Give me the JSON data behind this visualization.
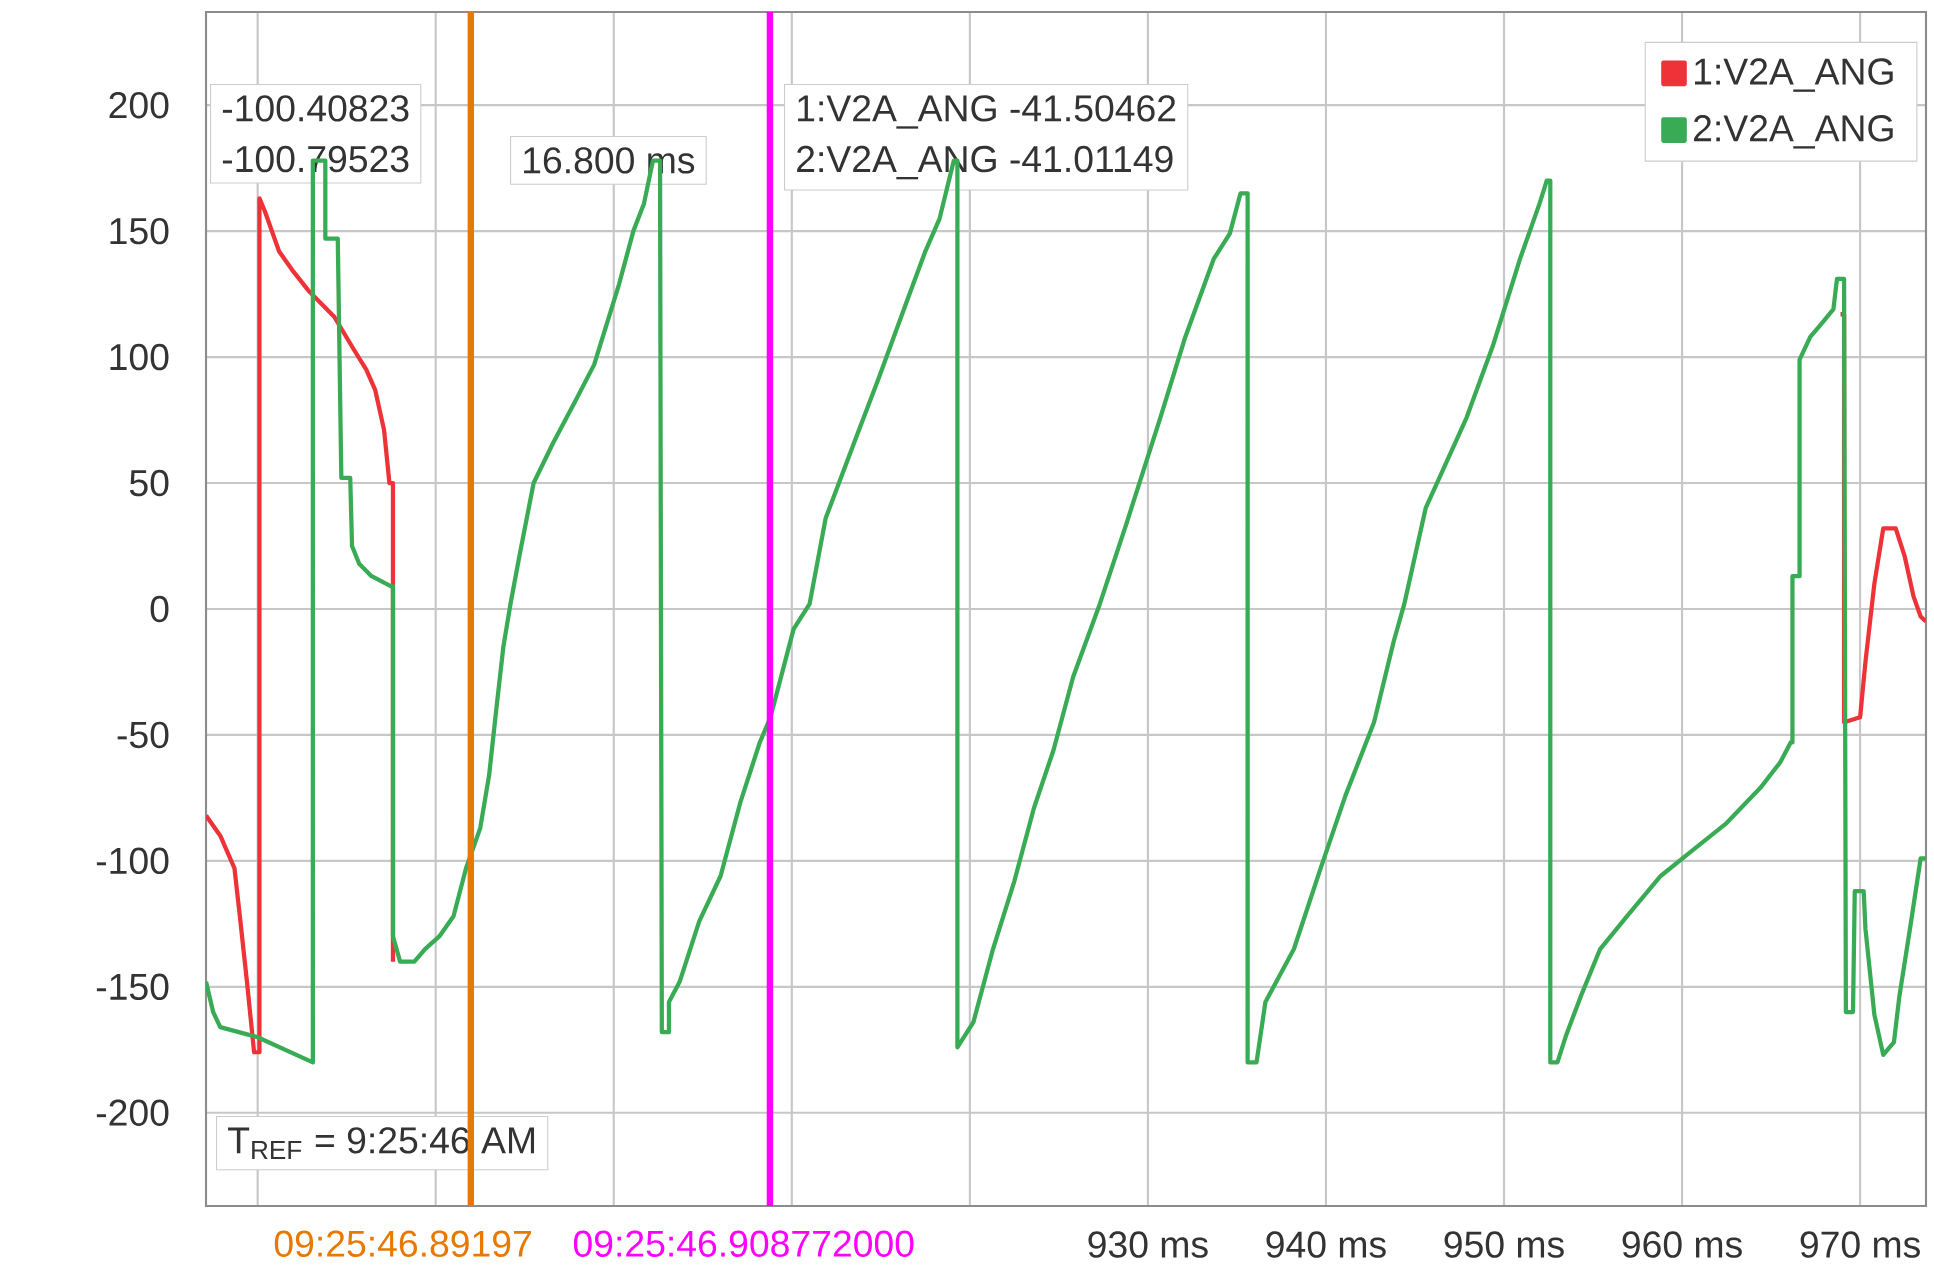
{
  "chart_data": {
    "type": "line",
    "xlim": [
      877.1,
      973.7
    ],
    "ylim": [
      -237,
      237
    ],
    "xticks": [
      {
        "value": 880,
        "label": null
      },
      {
        "value": 890,
        "label": null
      },
      {
        "value": 900,
        "label": null
      },
      {
        "value": 910,
        "label": null
      },
      {
        "value": 920,
        "label": null
      },
      {
        "value": 930,
        "label": "930 ms"
      },
      {
        "value": 940,
        "label": "940 ms"
      },
      {
        "value": 950,
        "label": "950 ms"
      },
      {
        "value": 960,
        "label": "960 ms"
      },
      {
        "value": 970,
        "label": "970 ms"
      }
    ],
    "yticks": [
      -200,
      -150,
      -100,
      -50,
      0,
      50,
      100,
      150,
      200
    ],
    "grid": true,
    "legend": "top right",
    "series": [
      {
        "name": "1:V2A_ANG",
        "color": "#ee3338",
        "x": [
          877.1,
          877.9,
          878.7,
          879.0,
          879.4,
          879.8,
          880.1,
          880.1,
          880.4,
          881.2,
          882.0,
          882.9,
          884.3,
          885.4,
          886.1,
          886.6,
          887.1,
          887.4,
          887.6,
          887.6,
          920.0,
          968.9,
          969.1,
          969.1,
          970.0,
          970.3,
          970.8,
          971.3,
          972.0,
          972.5,
          973.0,
          973.4,
          973.7
        ],
        "values": [
          -82,
          -90,
          -103,
          -122,
          -148,
          -176,
          -176,
          163,
          158,
          142,
          134,
          126,
          116,
          103,
          95,
          87,
          71,
          50,
          50,
          -140,
          null,
          117,
          117,
          -45,
          -43,
          -21,
          10,
          32,
          32,
          21,
          5,
          -3,
          -5
        ]
      },
      {
        "name": "2:V2A_ANG",
        "color": "#3aab55",
        "x": [
          877.1,
          877.5,
          877.9,
          880.0,
          883.1,
          883.1,
          883.8,
          883.8,
          884.5,
          884.7,
          885.2,
          885.3,
          885.7,
          886.4,
          887.5,
          887.6,
          887.6,
          888.0,
          888.8,
          889.4,
          890.2,
          891.0,
          891.7,
          892.5,
          893.0,
          893.4,
          893.8,
          894.2,
          894.7,
          895.5,
          896.6,
          897.8,
          898.9,
          899.6,
          900.3,
          901.1,
          901.7,
          902.2,
          902.6,
          902.7,
          903.1,
          903.1,
          903.7,
          904.8,
          906.0,
          907.1,
          908.2,
          908.8,
          910.1,
          911.0,
          911.9,
          913.5,
          914.9,
          916.4,
          917.5,
          918.3,
          919.1,
          919.3,
          919.3,
          920.2,
          921.3,
          922.5,
          923.6,
          924.7,
          925.8,
          927.3,
          928.8,
          930.7,
          932.1,
          933.7,
          934.6,
          935.2,
          935.6,
          935.6,
          936.1,
          936.6,
          938.2,
          939.7,
          941.1,
          942.7,
          943.8,
          944.4,
          945.6,
          947.9,
          949.4,
          950.9,
          952.0,
          952.4,
          952.6,
          952.6,
          953.0,
          953.5,
          954.3,
          955.4,
          956.9,
          958.8,
          960.2,
          962.5,
          964.4,
          965.5,
          966.1,
          966.2,
          966.2,
          966.6,
          966.6,
          967.2,
          967.8,
          968.5,
          968.7,
          969.1,
          969.2,
          969.6,
          969.7,
          970.2,
          970.3,
          970.8,
          971.3,
          971.9,
          972.2,
          972.8,
          973.4,
          973.7
        ],
        "values": [
          -148,
          -160,
          -166,
          -170,
          -180,
          178,
          178,
          147,
          147,
          52,
          52,
          25,
          18,
          13,
          9,
          9,
          -130,
          -140,
          -140,
          -135,
          -130,
          -122,
          -103,
          -87,
          -66,
          -40,
          -15,
          2,
          21,
          50,
          66,
          82,
          97,
          113,
          129,
          150,
          161,
          178,
          178,
          -168,
          -168,
          -156,
          -148,
          -124,
          -106,
          -77,
          -53,
          -43,
          -8,
          2,
          36,
          66,
          92,
          121,
          142,
          155,
          178,
          178,
          -174,
          -164,
          -135,
          -108,
          -79,
          -56,
          -27,
          2,
          34,
          76,
          108,
          139,
          149,
          165,
          165,
          -180,
          -180,
          -156,
          -135,
          -103,
          -74,
          -45,
          -13,
          2,
          40,
          76,
          105,
          139,
          161,
          170,
          170,
          -180,
          -180,
          -169,
          -154,
          -135,
          -122,
          -106,
          -98,
          -85,
          -71,
          -61,
          -53,
          -53,
          13,
          13,
          99,
          108,
          113,
          119,
          131,
          131,
          -160,
          -160,
          -112,
          -112,
          -127,
          -161,
          -177,
          -172,
          -154,
          -127,
          -99,
          -99
        ]
      }
    ],
    "ref_lines": [
      {
        "axis": "x",
        "value": 891.972,
        "color": "#e87800"
      },
      {
        "axis": "x",
        "value": 908.772,
        "color": "#ff00ff"
      }
    ],
    "annotations": [
      "-100.40823",
      "-100.79523",
      "16.800 ms",
      "1:V2A_ANG  -41.50462",
      "2:V2A_ANG  -41.01149",
      "T$_{REF}$ = 9:25:46 AM",
      "09:25:46.89197",
      "09:25:46.908772000"
    ]
  }
}
